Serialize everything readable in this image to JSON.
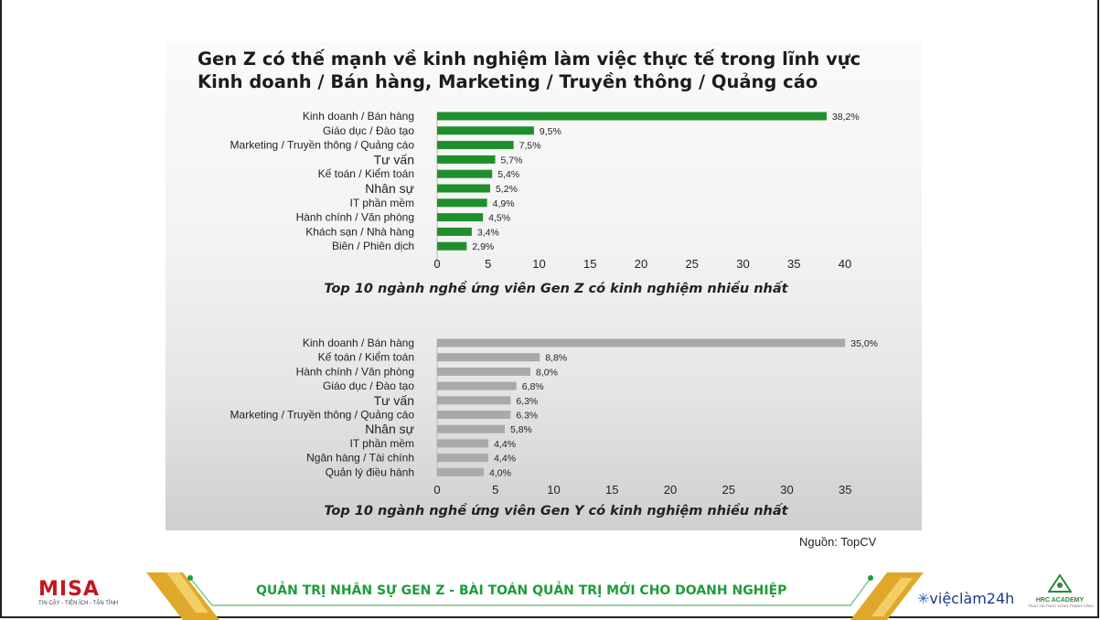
{
  "slide_title": {
    "line1": "Gen Z có thế mạnh về kinh nghiệm làm việc thực tế trong lĩnh vực",
    "line2": "Kinh doanh / Bán hàng, Marketing / Truyền thông / Quảng cáo"
  },
  "chart_data": [
    {
      "type": "bar",
      "orientation": "horizontal",
      "title": "Top 10 ngành nghề ứng viên Gen Z có kinh nghiệm nhiều nhất",
      "color": "#1f8f2e",
      "categories": [
        "Kinh doanh / Bán hàng",
        "Giáo dục / Đào tạo",
        "Marketing / Truyền thông / Quảng cáo",
        "Tư vấn",
        "Kế toán / Kiểm toán",
        "Nhân sự",
        "IT phần mềm",
        "Hành chính / Văn phòng",
        "Khách sạn / Nhà hàng",
        "Biên / Phiên dịch"
      ],
      "values": [
        38.2,
        9.5,
        7.5,
        5.7,
        5.4,
        5.2,
        4.9,
        4.5,
        3.4,
        2.9
      ],
      "value_labels": [
        "38,2%",
        "9,5%",
        "7,5%",
        "5,7%",
        "5,4%",
        "5,2%",
        "4,9%",
        "4,5%",
        "3,4%",
        "2,9%"
      ],
      "xticks": [
        "0",
        "5",
        "10",
        "15",
        "20",
        "25",
        "30",
        "35",
        "40"
      ],
      "xlim": [
        0,
        40
      ]
    },
    {
      "type": "bar",
      "orientation": "horizontal",
      "title": "Top 10 ngành nghề ứng viên Gen Y có kinh nghiệm nhiều nhất",
      "color": "#a9a9a9",
      "categories": [
        "Kinh doanh / Bán hàng",
        "Kế toán / Kiểm toán",
        "Hành chính / Văn phòng",
        "Giáo dục / Đào tạo",
        "Tư vấn",
        "Marketing / Truyền thông / Quảng cáo",
        "Nhân sự",
        "IT phần mềm",
        "Ngân hàng / Tài chính",
        "Quản lý điều hành"
      ],
      "values": [
        35.0,
        8.8,
        8.0,
        6.8,
        6.3,
        6.3,
        5.8,
        4.4,
        4.4,
        4.0
      ],
      "value_labels": [
        "35,0%",
        "8,8%",
        "8,0%",
        "6,8%",
        "6,3%",
        "6.3%",
        "5,8%",
        "4,4%",
        "4,4%",
        "4,0%"
      ],
      "xticks": [
        "0",
        "5",
        "10",
        "15",
        "20",
        "25",
        "30",
        "35"
      ],
      "xlim": [
        0,
        35
      ]
    }
  ],
  "source": "Nguồn: TopCV",
  "footer": {
    "misa_logo": "MISA",
    "misa_tagline": "TIN CẬY - TIỆN ÍCH - TẬN TÌNH",
    "banner": "QUẢN TRỊ NHÂN SỰ GEN Z - BÀI TOÁN QUẢN TRỊ MỚI CHO DOANH NGHIỆP",
    "vieclam_logo": "việclàm24h",
    "hrc_logo": "HRC ACADEMY",
    "hrc_tagline": "TRAO TRI THỨC VỮNG THÀNH CÔNG",
    "accent_green": "#1e9c3a",
    "accent_gold": "#e0a82a"
  }
}
